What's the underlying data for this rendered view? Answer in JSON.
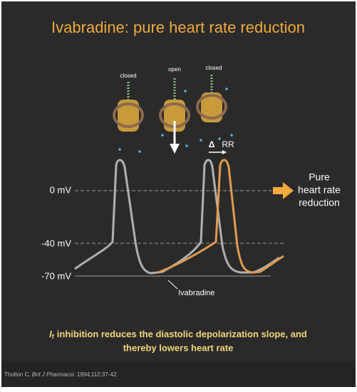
{
  "title": "Ivabradine: pure heart rate reduction",
  "channels": [
    {
      "label": "closed"
    },
    {
      "label": "open"
    },
    {
      "label": "closed"
    }
  ],
  "delta_rr": {
    "symbol": "Δ",
    "label": "RR"
  },
  "voltage_labels": [
    "0 mV",
    "-40 mV",
    "-70 mV"
  ],
  "outcome": [
    "Pure",
    "heart rate",
    "reduction"
  ],
  "drug_label": "Ivabradine",
  "caption": {
    "symbol": "I",
    "subscript": "f",
    "lines": [
      "inhibition reduces the diastolic depolarization slope, and",
      "thereby lowers heart rate"
    ]
  },
  "reference": {
    "authors": "Thollon C.",
    "journal": "Brit J Pharmacol.",
    "citation": "1994;112:37-42."
  }
}
